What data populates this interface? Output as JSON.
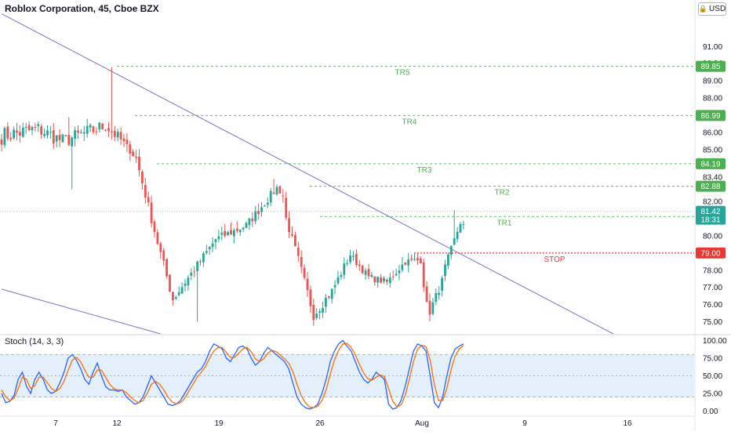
{
  "header": {
    "symbol_title": "Roblox Corporation, 45, Cboe BZX",
    "currency_button": "USD",
    "currency_icon": "lock-icon"
  },
  "colors": {
    "up": "#26a69a",
    "down": "#ef5350",
    "target": "#4caf50",
    "stop": "#e53935",
    "trendline": "#7b6fc7",
    "stoch_k": "#2962ff",
    "stoch_d": "#ff6d00",
    "stoch_band": "#e3f0fb",
    "axis_text": "#131722",
    "grid": "#f0f3fa"
  },
  "chart_data": [
    {
      "type": "candlestick",
      "title": "Roblox Corporation, 45, Cboe BZX",
      "timeframe": "45",
      "currency": "USD",
      "ylim": [
        74.3,
        92.7
      ],
      "x_tick_labels": [
        "7",
        "12",
        "19",
        "26",
        "Aug",
        "9",
        "16"
      ],
      "y_tick_labels": [
        "91.00",
        "90.04",
        "89.00",
        "88.00",
        "86.00",
        "85.00",
        "83.40",
        "82.00",
        "80.00",
        "78.00",
        "77.00",
        "76.00",
        "75.00"
      ],
      "last_price": 81.42,
      "countdown": "18:31",
      "price_labels": [
        {
          "value": 89.85,
          "text": "89.85",
          "kind": "target"
        },
        {
          "value": 86.99,
          "text": "86.99",
          "kind": "target"
        },
        {
          "value": 84.19,
          "text": "84.19",
          "kind": "target"
        },
        {
          "value": 82.88,
          "text": "82.88",
          "kind": "target"
        },
        {
          "value": 81.12,
          "text": "81.12",
          "kind": "target"
        },
        {
          "value": 79.0,
          "text": "79.00",
          "kind": "stop"
        }
      ],
      "levels": [
        {
          "name": "TR5",
          "value": 89.85,
          "kind": "target"
        },
        {
          "name": "TR4",
          "value": 86.99,
          "kind": "target"
        },
        {
          "name": "TR3",
          "value": 84.19,
          "kind": "target"
        },
        {
          "name": "TR2",
          "value": 82.88,
          "kind": "target"
        },
        {
          "name": "TR1",
          "value": 81.12,
          "kind": "target"
        },
        {
          "name": "STOP",
          "value": 79.0,
          "kind": "stop"
        }
      ],
      "trendlines": [
        {
          "from": [
            0,
            92.9
          ],
          "to": [
            200,
            74.3
          ]
        },
        {
          "from": [
            0,
            76.9
          ],
          "to": [
            52,
            74.3
          ]
        }
      ],
      "series": [
        {
          "start": 0,
          "end": 12,
          "from": 85.8,
          "to": 86.2,
          "noise": 1.0
        },
        {
          "start": 12,
          "end": 20,
          "from": 86.2,
          "to": 85.5,
          "noise": 0.9
        },
        {
          "start": 20,
          "end": 34,
          "from": 85.5,
          "to": 86.4,
          "noise": 0.9
        },
        {
          "start": 34,
          "end": 40,
          "from": 86.4,
          "to": 85.4,
          "noise": 0.7
        },
        {
          "start": 40,
          "end": 44,
          "from": 85.4,
          "to": 84.5,
          "noise": 0.4
        },
        {
          "start": 44,
          "end": 50,
          "from": 84.5,
          "to": 80.3,
          "noise": 0.6
        },
        {
          "start": 50,
          "end": 56,
          "from": 80.3,
          "to": 76.3,
          "noise": 0.6
        },
        {
          "start": 56,
          "end": 64,
          "from": 76.3,
          "to": 78.3,
          "noise": 0.5
        },
        {
          "start": 64,
          "end": 70,
          "from": 78.3,
          "to": 79.8,
          "noise": 0.5
        },
        {
          "start": 70,
          "end": 80,
          "from": 79.8,
          "to": 80.6,
          "noise": 0.5
        },
        {
          "start": 80,
          "end": 90,
          "from": 80.6,
          "to": 82.8,
          "noise": 0.5
        },
        {
          "start": 90,
          "end": 93,
          "from": 82.8,
          "to": 82.1,
          "noise": 0.3
        },
        {
          "start": 93,
          "end": 97,
          "from": 81.0,
          "to": 78.6,
          "noise": 0.5
        },
        {
          "start": 97,
          "end": 102,
          "from": 78.6,
          "to": 75.4,
          "noise": 0.6
        },
        {
          "start": 102,
          "end": 108,
          "from": 75.4,
          "to": 76.8,
          "noise": 0.6
        },
        {
          "start": 108,
          "end": 114,
          "from": 76.8,
          "to": 78.9,
          "noise": 0.5
        },
        {
          "start": 114,
          "end": 120,
          "from": 78.9,
          "to": 77.6,
          "noise": 0.4
        },
        {
          "start": 120,
          "end": 126,
          "from": 77.6,
          "to": 77.3,
          "noise": 0.4
        },
        {
          "start": 126,
          "end": 132,
          "from": 77.3,
          "to": 78.5,
          "noise": 0.4
        },
        {
          "start": 132,
          "end": 138,
          "from": 78.5,
          "to": 78.6,
          "noise": 0.4
        },
        {
          "start": 138,
          "end": 140,
          "from": 77.2,
          "to": 74.7,
          "noise": 0.5
        },
        {
          "start": 140,
          "end": 145,
          "from": 75.6,
          "to": 77.8,
          "noise": 0.5
        },
        {
          "start": 145,
          "end": 151,
          "from": 78.2,
          "to": 81.3,
          "noise": 0.4
        }
      ],
      "spikes": [
        {
          "index": 22,
          "high": 86.9
        },
        {
          "index": 23,
          "low": 82.7
        },
        {
          "index": 36,
          "high": 89.8
        },
        {
          "index": 64,
          "low": 75.0
        },
        {
          "index": 89,
          "high": 83.3
        },
        {
          "index": 148,
          "high": 81.5
        }
      ]
    },
    {
      "type": "line",
      "title": "Stoch (14, 3, 3)",
      "ylim": [
        -6,
        107
      ],
      "y_tick_labels": [
        "100.00",
        "75.00",
        "50.00",
        "25.00",
        "0.00"
      ],
      "band": [
        20,
        80
      ],
      "series": [
        {
          "name": "%K",
          "values": [
            25,
            12,
            14,
            22,
            45,
            55,
            35,
            25,
            45,
            55,
            45,
            30,
            25,
            28,
            40,
            55,
            75,
            80,
            72,
            60,
            45,
            38,
            55,
            68,
            50,
            35,
            30,
            30,
            28,
            30,
            20,
            15,
            10,
            12,
            20,
            35,
            50,
            40,
            30,
            20,
            10,
            8,
            10,
            15,
            25,
            35,
            45,
            55,
            60,
            70,
            85,
            95,
            92,
            88,
            75,
            70,
            80,
            90,
            92,
            88,
            75,
            65,
            70,
            82,
            90,
            85,
            80,
            75,
            70,
            60,
            40,
            20,
            10,
            5,
            3,
            5,
            10,
            25,
            45,
            70,
            85,
            95,
            100,
            92,
            85,
            70,
            55,
            45,
            40,
            45,
            55,
            50,
            45,
            10,
            3,
            5,
            15,
            35,
            60,
            85,
            95,
            92,
            85,
            50,
            12,
            5,
            20,
            50,
            75,
            88,
            92,
            95
          ]
        },
        {
          "name": "%D",
          "values": [
            30,
            20,
            15,
            18,
            32,
            48,
            45,
            32,
            36,
            48,
            48,
            40,
            32,
            28,
            32,
            42,
            58,
            72,
            76,
            70,
            58,
            48,
            48,
            58,
            58,
            48,
            38,
            32,
            30,
            30,
            26,
            20,
            15,
            12,
            15,
            25,
            38,
            42,
            38,
            30,
            20,
            13,
            10,
            12,
            18,
            28,
            38,
            48,
            55,
            63,
            75,
            85,
            90,
            90,
            83,
            76,
            76,
            82,
            88,
            90,
            84,
            74,
            70,
            74,
            82,
            86,
            84,
            79,
            74,
            68,
            56,
            38,
            22,
            12,
            6,
            5,
            7,
            15,
            30,
            52,
            72,
            86,
            95,
            96,
            90,
            80,
            66,
            54,
            46,
            44,
            48,
            51,
            49,
            32,
            14,
            6,
            9,
            22,
            45,
            70,
            88,
            93,
            91,
            72,
            38,
            15,
            15,
            32,
            58,
            78,
            88,
            93
          ]
        }
      ]
    }
  ],
  "x_tick_labels": [
    "7",
    "12",
    "19",
    "26",
    "Aug",
    "9",
    "16"
  ],
  "stoch_title": "Stoch (14, 3, 3)"
}
